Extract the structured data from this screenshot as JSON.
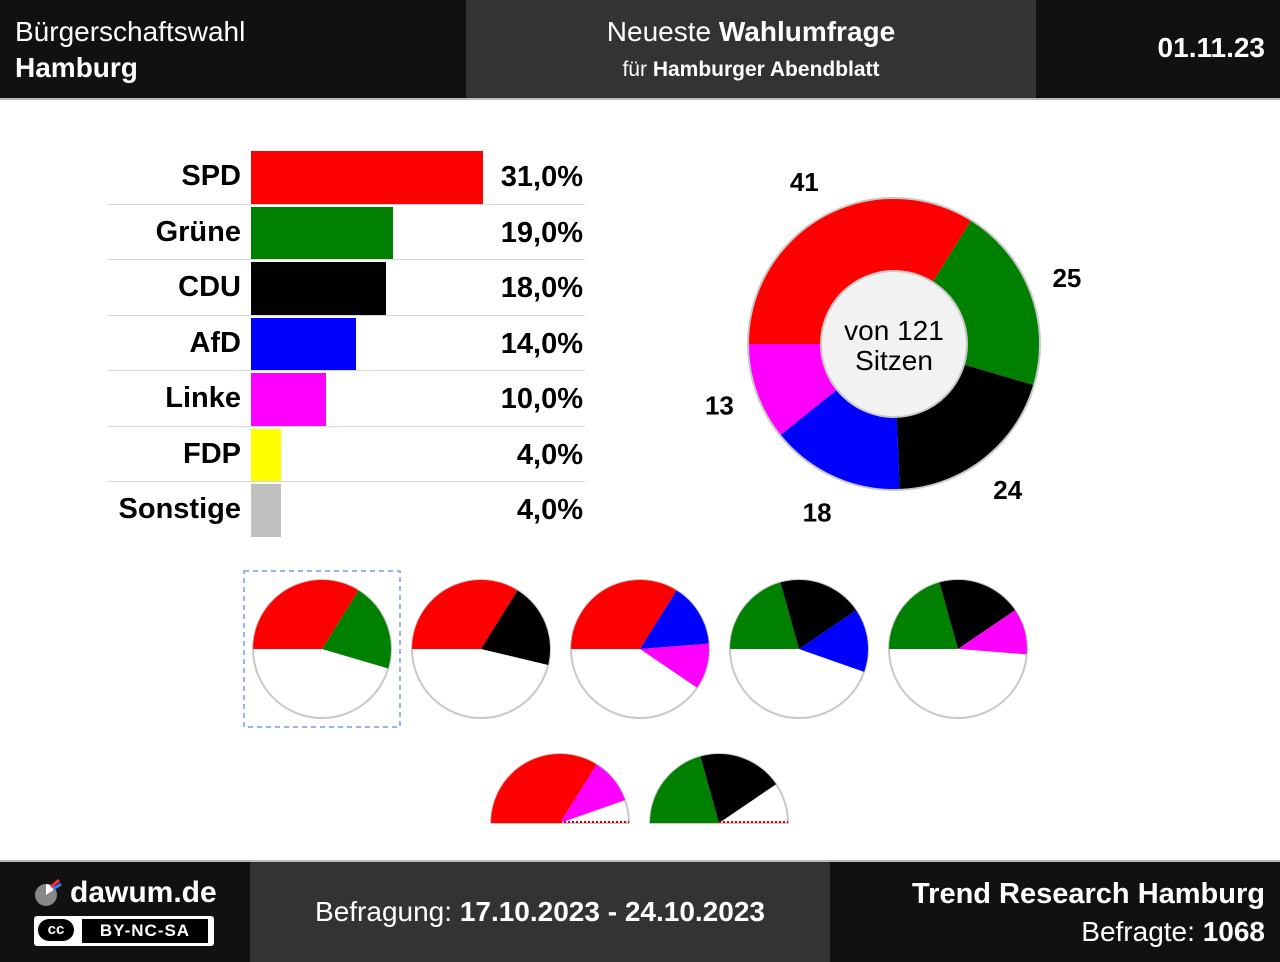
{
  "header": {
    "title_line1": "Bürgerschaftswahl",
    "title_line2": "Hamburg",
    "center_prefix": "Neueste",
    "center_bold": "Wahlumfrage",
    "center_sub_prefix": "für",
    "center_sub_bold": "Hamburger Abendblatt",
    "date": "01.11.23"
  },
  "chart_data": [
    {
      "type": "bar",
      "categories": [
        "SPD",
        "Grüne",
        "CDU",
        "AfD",
        "Linke",
        "FDP",
        "Sonstige"
      ],
      "values": [
        31.0,
        19.0,
        18.0,
        14.0,
        10.0,
        4.0,
        4.0
      ],
      "value_labels": [
        "31,0%",
        "19,0%",
        "18,0%",
        "14,0%",
        "10,0%",
        "4,0%",
        "4,0%"
      ],
      "colors": [
        "#ff0000",
        "#008000",
        "#000000",
        "#0000ff",
        "#ff00ff",
        "#ffff00",
        "#c0c0c0"
      ]
    },
    {
      "type": "pie",
      "categories": [
        "SPD",
        "Grüne",
        "CDU",
        "AfD",
        "Linke"
      ],
      "values": [
        41,
        25,
        24,
        18,
        13
      ],
      "colors": [
        "#ff0000",
        "#008000",
        "#000000",
        "#0000ff",
        "#ff00ff"
      ],
      "center_line1": "von 121",
      "center_line2": "Sitzen"
    }
  ],
  "coalitions": [
    {
      "parties": [
        "SPD",
        "Grüne"
      ],
      "seats": [
        41,
        25
      ],
      "colors": [
        "#ff0000",
        "#008000"
      ],
      "selected": true,
      "majority": true
    },
    {
      "parties": [
        "SPD",
        "CDU"
      ],
      "seats": [
        41,
        24
      ],
      "colors": [
        "#ff0000",
        "#000000"
      ],
      "selected": false,
      "majority": true
    },
    {
      "parties": [
        "SPD",
        "AfD",
        "Linke"
      ],
      "seats": [
        41,
        18,
        13
      ],
      "colors": [
        "#ff0000",
        "#0000ff",
        "#ff00ff"
      ],
      "selected": false,
      "majority": true
    },
    {
      "parties": [
        "Grüne",
        "CDU",
        "AfD"
      ],
      "seats": [
        25,
        24,
        18
      ],
      "colors": [
        "#008000",
        "#000000",
        "#0000ff"
      ],
      "selected": false,
      "majority": true
    },
    {
      "parties": [
        "Grüne",
        "CDU",
        "Linke"
      ],
      "seats": [
        25,
        24,
        13
      ],
      "colors": [
        "#008000",
        "#000000",
        "#ff00ff"
      ],
      "selected": false,
      "majority": true
    },
    {
      "parties": [
        "SPD",
        "Linke"
      ],
      "seats": [
        41,
        13
      ],
      "colors": [
        "#ff0000",
        "#ff00ff"
      ],
      "selected": false,
      "majority": false
    },
    {
      "parties": [
        "Grüne",
        "CDU"
      ],
      "seats": [
        25,
        24
      ],
      "colors": [
        "#008000",
        "#000000"
      ],
      "selected": false,
      "majority": false
    }
  ],
  "total_seats": 121,
  "footer": {
    "site": "dawum.de",
    "license_cc": "cc",
    "license": "BY-NC-SA",
    "survey_label": "Befragung:",
    "survey_dates": "17.10.2023 - 24.10.2023",
    "institute": "Trend Research Hamburg",
    "respondents_label": "Befragte:",
    "respondents": "1068"
  }
}
